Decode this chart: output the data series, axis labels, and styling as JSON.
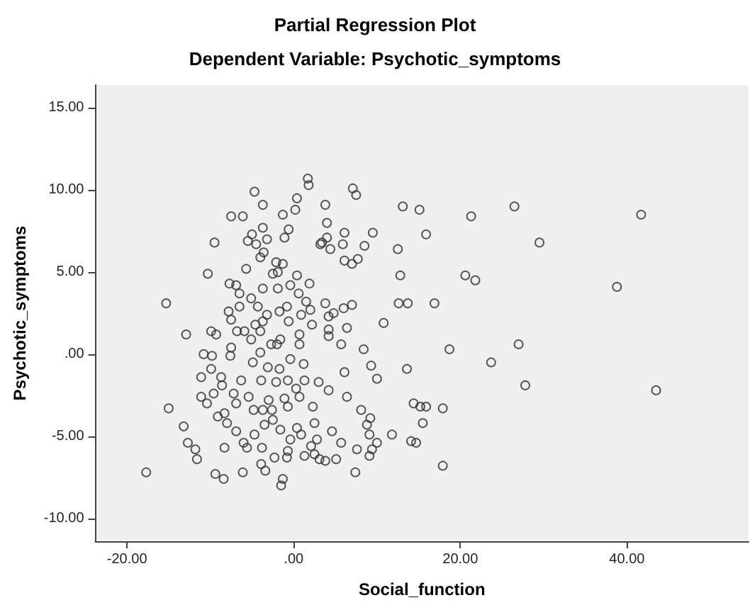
{
  "chart_data": {
    "type": "scatter",
    "title": "Partial Regression Plot",
    "subtitle": "Dependent Variable: Psychotic_symptoms",
    "xlabel": "Social_function",
    "ylabel": "Psychotic_symptoms",
    "marker": "circle",
    "xlim": [
      -23.8,
      54.6
    ],
    "ylim": [
      -11.4,
      16.4
    ],
    "xticks": [
      {
        "value": -20,
        "label": "-20.00"
      },
      {
        "value": 0,
        "label": ".00"
      },
      {
        "value": 20,
        "label": "20.00"
      },
      {
        "value": 40,
        "label": "40.00"
      }
    ],
    "yticks": [
      {
        "value": -10,
        "label": "-10.00"
      },
      {
        "value": -5,
        "label": "-5.00"
      },
      {
        "value": 0,
        "label": ".00"
      },
      {
        "value": 5,
        "label": "5.00"
      },
      {
        "value": 10,
        "label": "10.00"
      },
      {
        "value": 15,
        "label": "15.00"
      }
    ],
    "series": [
      {
        "color": "#333333",
        "x": [
          -17.7,
          -15.3,
          -15.0,
          -12.9,
          -13.2,
          -12.7,
          -11.8,
          -11.6,
          -10.8,
          -11.1,
          -11.1,
          -10.4,
          -9.9,
          -9.3,
          -9.8,
          -9.9,
          -9.6,
          -9.1,
          -9.4,
          -8.4,
          -8.3,
          -8.7,
          -8.6,
          -8.0,
          -8.3,
          -7.8,
          -7.5,
          -7.5,
          -7.6,
          -7.2,
          -6.9,
          -6.9,
          -6.5,
          -6.3,
          -6.0,
          -6.1,
          -5.6,
          -5.4,
          -5.1,
          -5.1,
          -4.9,
          -4.8,
          -4.7,
          -4.3,
          -4.0,
          -3.9,
          -3.7,
          -3.8,
          -3.9,
          -3.4,
          -3.5,
          -3.1,
          -3.0,
          -2.6,
          -2.3,
          -2.5,
          -2.1,
          -2.0,
          -1.7,
          -1.6,
          -1.3,
          -1.5,
          -1.1,
          -0.7,
          -0.7,
          -0.7,
          -0.8,
          -0.4,
          -0.4,
          0.3,
          0.4,
          0.7,
          0.9,
          1.3,
          1.2,
          1.3,
          2.1,
          2.3,
          2.5,
          2.8,
          2.5,
          3.1,
          3.8,
          5.1,
          3.0,
          4.2,
          4.6,
          5.7,
          6.1,
          6.4,
          7.4,
          7.6,
          8.1,
          8.4,
          8.8,
          9.2,
          9.1,
          9.1,
          9.4,
          9.3,
          10.0,
          10.0,
          11.8,
          13.6,
          14.1,
          14.7,
          14.4,
          15.2,
          15.9,
          15.5,
          17.9,
          17.9,
          18.7,
          23.7,
          27.0,
          27.8,
          43.5,
          38.8,
          10.8,
          6.4,
          7.0,
          6.0,
          5.7,
          4.2,
          4.2,
          4.2,
          4.8,
          3.8,
          2.2,
          2.0,
          1.5,
          0.9,
          0.7,
          0.7,
          0.6,
          -0.6,
          -0.8,
          -1.7,
          -1.6,
          -2.7,
          -3.2,
          -3.7,
          -4.0,
          -4.6,
          -6.5,
          -5.9,
          -6.8,
          12.6,
          13.7,
          16.9,
          12.8,
          20.6,
          21.8,
          -10.3,
          -7.7,
          -6.9,
          -3.7,
          -2.5,
          -1.9,
          -0.4,
          1.9,
          0.4,
          1.7,
          1.8,
          -4.7,
          -3.7,
          -7.5,
          -6.1,
          0.4,
          0.2,
          -1.3,
          -3.7,
          -5.0,
          -5.5,
          -3.2,
          -1.1,
          -0.6,
          -9.5,
          -4.5,
          -3.6,
          -4.0,
          -5.7,
          -2.1,
          -1.3,
          -1.9,
          3.8,
          4.0,
          3.4,
          4.0,
          7.1,
          7.5,
          13.1,
          15.1,
          21.3,
          26.5,
          9.5,
          15.9,
          6.1,
          5.9,
          8.5,
          12.5,
          4.4,
          3.2,
          6.1,
          7.0,
          7.7,
          29.5,
          41.7
        ],
        "values": [
          -7.2,
          3.1,
          -3.3,
          1.2,
          -4.4,
          -5.4,
          -5.8,
          -6.4,
          0,
          -1.4,
          -2.6,
          -3.0,
          1.4,
          1.2,
          -0.1,
          -0.9,
          -2.4,
          -3.8,
          -7.3,
          -7.6,
          -5.7,
          -1.4,
          -1.9,
          -4.2,
          -3.6,
          2.6,
          2.1,
          0.4,
          -0.1,
          -2.4,
          -3.0,
          -4.7,
          3.7,
          -1.6,
          -5.4,
          -7.2,
          -5.7,
          -2.6,
          3.4,
          0.9,
          -0.5,
          -3.4,
          -4.9,
          2.9,
          0.1,
          -1.6,
          -3.4,
          -5.7,
          -6.7,
          -7.1,
          -4.3,
          -0.8,
          -2.8,
          -3.4,
          -6.3,
          -4.0,
          -1.7,
          0.6,
          -0.9,
          -4.6,
          -7.6,
          -8.0,
          -2.7,
          -1.6,
          -3.2,
          -5.9,
          -6.3,
          -0.3,
          -5.2,
          -2.1,
          -4.5,
          -2.6,
          -4.9,
          -1.6,
          -0.6,
          -6.2,
          -5.6,
          -3.2,
          -4.2,
          -5.2,
          -6.1,
          -6.4,
          -6.5,
          -6.4,
          -1.7,
          -2.2,
          -4.7,
          -5.4,
          -1.1,
          -2.6,
          -7.2,
          -5.8,
          -3.4,
          0.3,
          -4.3,
          -3.9,
          -4.9,
          -6.2,
          -5.8,
          -0.7,
          -1.5,
          -5.4,
          -4.9,
          -0.9,
          -5.3,
          -5.4,
          -3.0,
          -3.2,
          -3.2,
          -4.2,
          -3.3,
          -6.8,
          0.3,
          -0.5,
          0.6,
          -1.9,
          -2.2,
          4.1,
          1.9,
          1.6,
          3.0,
          2.8,
          0.6,
          1.5,
          1.1,
          2.3,
          2.5,
          3.1,
          1.8,
          2.7,
          3.2,
          2.4,
          1.2,
          0.6,
          3.7,
          2.0,
          2.9,
          2.6,
          0.9,
          0.6,
          2.4,
          2.0,
          1.4,
          1.8,
          2.9,
          1.4,
          1.4,
          3.1,
          3.1,
          3.1,
          4.8,
          4.8,
          4.5,
          4.9,
          4.3,
          4.2,
          4.0,
          4.9,
          4.0,
          4.2,
          4.3,
          4.8,
          10.7,
          10.3,
          9.9,
          9.1,
          8.4,
          8.4,
          9.5,
          8.8,
          8.5,
          7.7,
          7.3,
          6.9,
          7.0,
          7.1,
          7.6,
          6.8,
          6.7,
          6.2,
          5.9,
          5.2,
          5.6,
          5.5,
          5.0,
          9.1,
          8.0,
          6.8,
          7.1,
          10.1,
          9.7,
          9.0,
          8.8,
          8.4,
          9.0,
          7.4,
          7.3,
          7.4,
          6.7,
          6.6,
          6.4,
          6.4,
          6.7,
          5.7,
          5.5,
          5.8,
          6.8,
          8.5
        ]
      }
    ]
  }
}
